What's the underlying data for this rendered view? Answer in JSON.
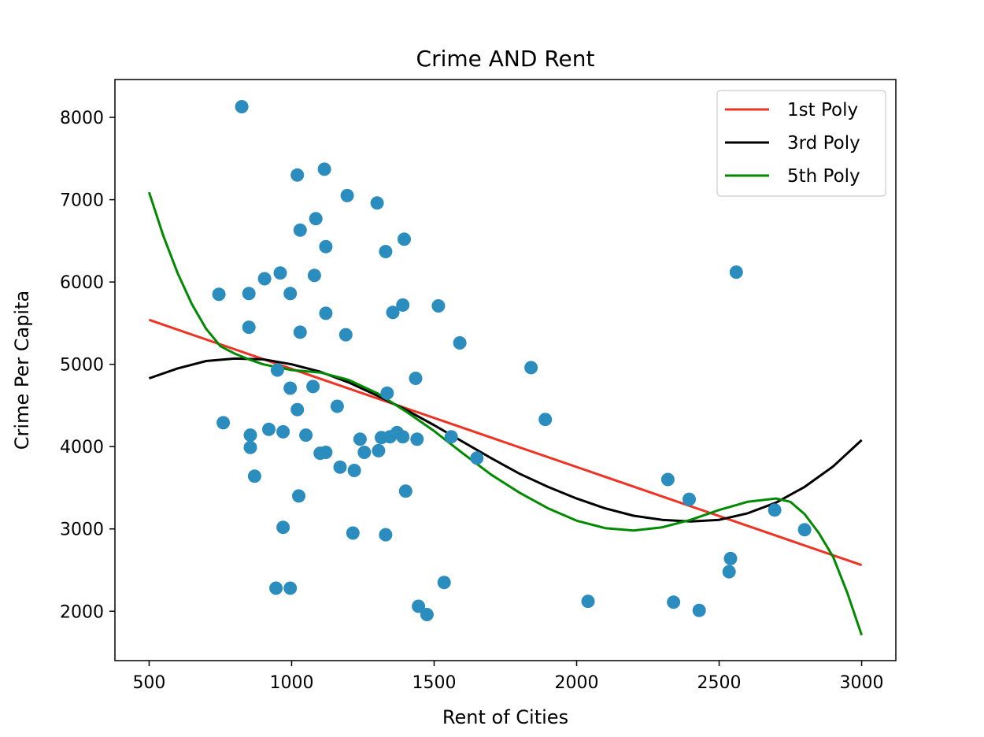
{
  "chart_data": {
    "type": "scatter",
    "title": "Crime AND Rent",
    "xlabel": "Rent of Cities",
    "ylabel": "Crime Per Capita",
    "xlim": [
      380,
      3120
    ],
    "ylim": [
      1400,
      8460
    ],
    "xticks": [
      500,
      1000,
      1500,
      2000,
      2500,
      3000
    ],
    "yticks": [
      2000,
      3000,
      4000,
      5000,
      6000,
      7000,
      8000
    ],
    "grid": false,
    "legend_position": "top-right",
    "colors": {
      "points": "#2b8cbe",
      "poly1": "#ee3322",
      "poly3": "#000000",
      "poly5": "#008a00"
    },
    "points": [
      {
        "x": 825,
        "y": 8130
      },
      {
        "x": 1020,
        "y": 7300
      },
      {
        "x": 1115,
        "y": 7370
      },
      {
        "x": 1195,
        "y": 7050
      },
      {
        "x": 1300,
        "y": 6960
      },
      {
        "x": 1085,
        "y": 6770
      },
      {
        "x": 1030,
        "y": 6630
      },
      {
        "x": 1395,
        "y": 6520
      },
      {
        "x": 1120,
        "y": 6430
      },
      {
        "x": 1330,
        "y": 6370
      },
      {
        "x": 960,
        "y": 6110
      },
      {
        "x": 905,
        "y": 6040
      },
      {
        "x": 1080,
        "y": 6080
      },
      {
        "x": 2560,
        "y": 6120
      },
      {
        "x": 745,
        "y": 5850
      },
      {
        "x": 850,
        "y": 5860
      },
      {
        "x": 995,
        "y": 5860
      },
      {
        "x": 1390,
        "y": 5720
      },
      {
        "x": 1515,
        "y": 5710
      },
      {
        "x": 1120,
        "y": 5620
      },
      {
        "x": 1355,
        "y": 5630
      },
      {
        "x": 850,
        "y": 5450
      },
      {
        "x": 1030,
        "y": 5390
      },
      {
        "x": 1190,
        "y": 5360
      },
      {
        "x": 1590,
        "y": 5260
      },
      {
        "x": 1840,
        "y": 4960
      },
      {
        "x": 950,
        "y": 4930
      },
      {
        "x": 1435,
        "y": 4830
      },
      {
        "x": 995,
        "y": 4710
      },
      {
        "x": 1075,
        "y": 4730
      },
      {
        "x": 1335,
        "y": 4650
      },
      {
        "x": 1160,
        "y": 4490
      },
      {
        "x": 1020,
        "y": 4450
      },
      {
        "x": 1890,
        "y": 4330
      },
      {
        "x": 760,
        "y": 4290
      },
      {
        "x": 920,
        "y": 4210
      },
      {
        "x": 970,
        "y": 4180
      },
      {
        "x": 855,
        "y": 4140
      },
      {
        "x": 1050,
        "y": 4140
      },
      {
        "x": 1370,
        "y": 4170
      },
      {
        "x": 1315,
        "y": 4110
      },
      {
        "x": 1345,
        "y": 4120
      },
      {
        "x": 1390,
        "y": 4120
      },
      {
        "x": 1240,
        "y": 4090
      },
      {
        "x": 1440,
        "y": 4090
      },
      {
        "x": 1560,
        "y": 4120
      },
      {
        "x": 855,
        "y": 3990
      },
      {
        "x": 1255,
        "y": 3930
      },
      {
        "x": 1305,
        "y": 3950
      },
      {
        "x": 1100,
        "y": 3920
      },
      {
        "x": 1120,
        "y": 3930
      },
      {
        "x": 1650,
        "y": 3860
      },
      {
        "x": 1170,
        "y": 3750
      },
      {
        "x": 1220,
        "y": 3710
      },
      {
        "x": 870,
        "y": 3640
      },
      {
        "x": 2320,
        "y": 3600
      },
      {
        "x": 1400,
        "y": 3460
      },
      {
        "x": 1025,
        "y": 3400
      },
      {
        "x": 2395,
        "y": 3360
      },
      {
        "x": 2695,
        "y": 3230
      },
      {
        "x": 970,
        "y": 3020
      },
      {
        "x": 2800,
        "y": 2990
      },
      {
        "x": 1215,
        "y": 2950
      },
      {
        "x": 1330,
        "y": 2930
      },
      {
        "x": 2540,
        "y": 2640
      },
      {
        "x": 2535,
        "y": 2480
      },
      {
        "x": 1535,
        "y": 2350
      },
      {
        "x": 945,
        "y": 2280
      },
      {
        "x": 995,
        "y": 2280
      },
      {
        "x": 2040,
        "y": 2120
      },
      {
        "x": 2340,
        "y": 2110
      },
      {
        "x": 1445,
        "y": 2060
      },
      {
        "x": 2430,
        "y": 2010
      },
      {
        "x": 1475,
        "y": 1960
      }
    ],
    "series": [
      {
        "name": "1st Poly",
        "x": [
          500,
          3000
        ],
        "y": [
          5540,
          2560
        ]
      },
      {
        "name": "3rd Poly",
        "x": [
          500,
          600,
          700,
          800,
          900,
          1000,
          1100,
          1200,
          1300,
          1400,
          1500,
          1600,
          1700,
          1800,
          1900,
          2000,
          2100,
          2200,
          2300,
          2400,
          2500,
          2600,
          2700,
          2800,
          2900,
          3000
        ],
        "y": [
          4830,
          4950,
          5040,
          5070,
          5060,
          5000,
          4910,
          4780,
          4620,
          4450,
          4260,
          4060,
          3860,
          3670,
          3510,
          3370,
          3250,
          3160,
          3110,
          3090,
          3110,
          3190,
          3320,
          3510,
          3760,
          4080
        ]
      },
      {
        "name": "5th Poly",
        "x": [
          500,
          550,
          600,
          650,
          700,
          750,
          800,
          850,
          900,
          1000,
          1100,
          1200,
          1300,
          1400,
          1500,
          1600,
          1700,
          1800,
          1900,
          2000,
          2100,
          2200,
          2300,
          2400,
          2500,
          2600,
          2700,
          2750,
          2800,
          2850,
          2900,
          2950,
          3000
        ],
        "y": [
          7090,
          6560,
          6110,
          5730,
          5430,
          5220,
          5130,
          5060,
          5000,
          4930,
          4900,
          4810,
          4650,
          4430,
          4190,
          3920,
          3660,
          3440,
          3250,
          3100,
          3010,
          2980,
          3020,
          3110,
          3230,
          3330,
          3370,
          3330,
          3180,
          2950,
          2660,
          2220,
          1710
        ]
      }
    ]
  }
}
